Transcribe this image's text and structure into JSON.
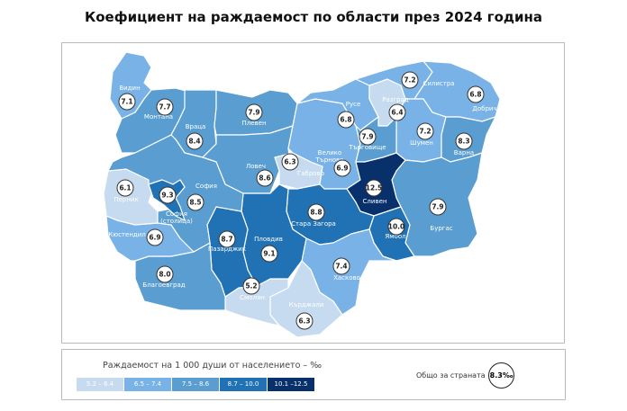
{
  "title": "Коефициент на раждаемост по области през 2024 година",
  "legend": {
    "title": "Раждаемост на 1 000 души от населението – ‰",
    "bins": [
      {
        "label": "5.2 – 6.4",
        "color": "#c6dbef"
      },
      {
        "label": "6.5 – 7.4",
        "color": "#78b2e6"
      },
      {
        "label": "7.5 – 8.6",
        "color": "#5a9dd0"
      },
      {
        "label": "8.7 – 10.0",
        "color": "#2171b5"
      },
      {
        "label": "10.1 –12.5",
        "color": "#08306b"
      }
    ],
    "total_label": "Общо за страната",
    "total_value": "8.3‰"
  },
  "regions": [
    {
      "name": "Видин",
      "value": "7.1",
      "bin": 1
    },
    {
      "name": "Монтана",
      "value": "7.7",
      "bin": 2
    },
    {
      "name": "Враца",
      "value": "8.4",
      "bin": 2
    },
    {
      "name": "Плевен",
      "value": "7.9",
      "bin": 2
    },
    {
      "name": "Ловеч",
      "value": "8.6",
      "bin": 2
    },
    {
      "name": "Габрово",
      "value": "6.3",
      "bin": 0
    },
    {
      "name": "Велико Търново",
      "value": "6.9",
      "bin": 1
    },
    {
      "name": "Русе",
      "value": "6.8",
      "bin": 1
    },
    {
      "name": "Разград",
      "value": "6.4",
      "bin": 0
    },
    {
      "name": "Силистра",
      "value": "7.2",
      "bin": 1
    },
    {
      "name": "Добрич",
      "value": "6.8",
      "bin": 1
    },
    {
      "name": "Шумен",
      "value": "7.2",
      "bin": 1
    },
    {
      "name": "Търговище",
      "value": "7.9",
      "bin": 2
    },
    {
      "name": "Варна",
      "value": "8.3",
      "bin": 2
    },
    {
      "name": "Бургас",
      "value": "7.9",
      "bin": 2
    },
    {
      "name": "Сливен",
      "value": "12.5",
      "bin": 4
    },
    {
      "name": "Ямбол",
      "value": "10.0",
      "bin": 3
    },
    {
      "name": "Стара Загора",
      "value": "8.8",
      "bin": 3
    },
    {
      "name": "Хасково",
      "value": "7.4",
      "bin": 1
    },
    {
      "name": "Кърджали",
      "value": "6.3",
      "bin": 0
    },
    {
      "name": "Смолян",
      "value": "5.2",
      "bin": 0
    },
    {
      "name": "Пловдив",
      "value": "9.1",
      "bin": 3
    },
    {
      "name": "Пазарджик",
      "value": "8.7",
      "bin": 3
    },
    {
      "name": "Благоевград",
      "value": "8.0",
      "bin": 2
    },
    {
      "name": "Кюстендил",
      "value": "6.9",
      "bin": 1
    },
    {
      "name": "Перник",
      "value": "6.1",
      "bin": 0
    },
    {
      "name": "София",
      "value": "8.5",
      "bin": 2
    },
    {
      "name": "София (столица)",
      "value": "9.3",
      "bin": 3
    }
  ]
}
